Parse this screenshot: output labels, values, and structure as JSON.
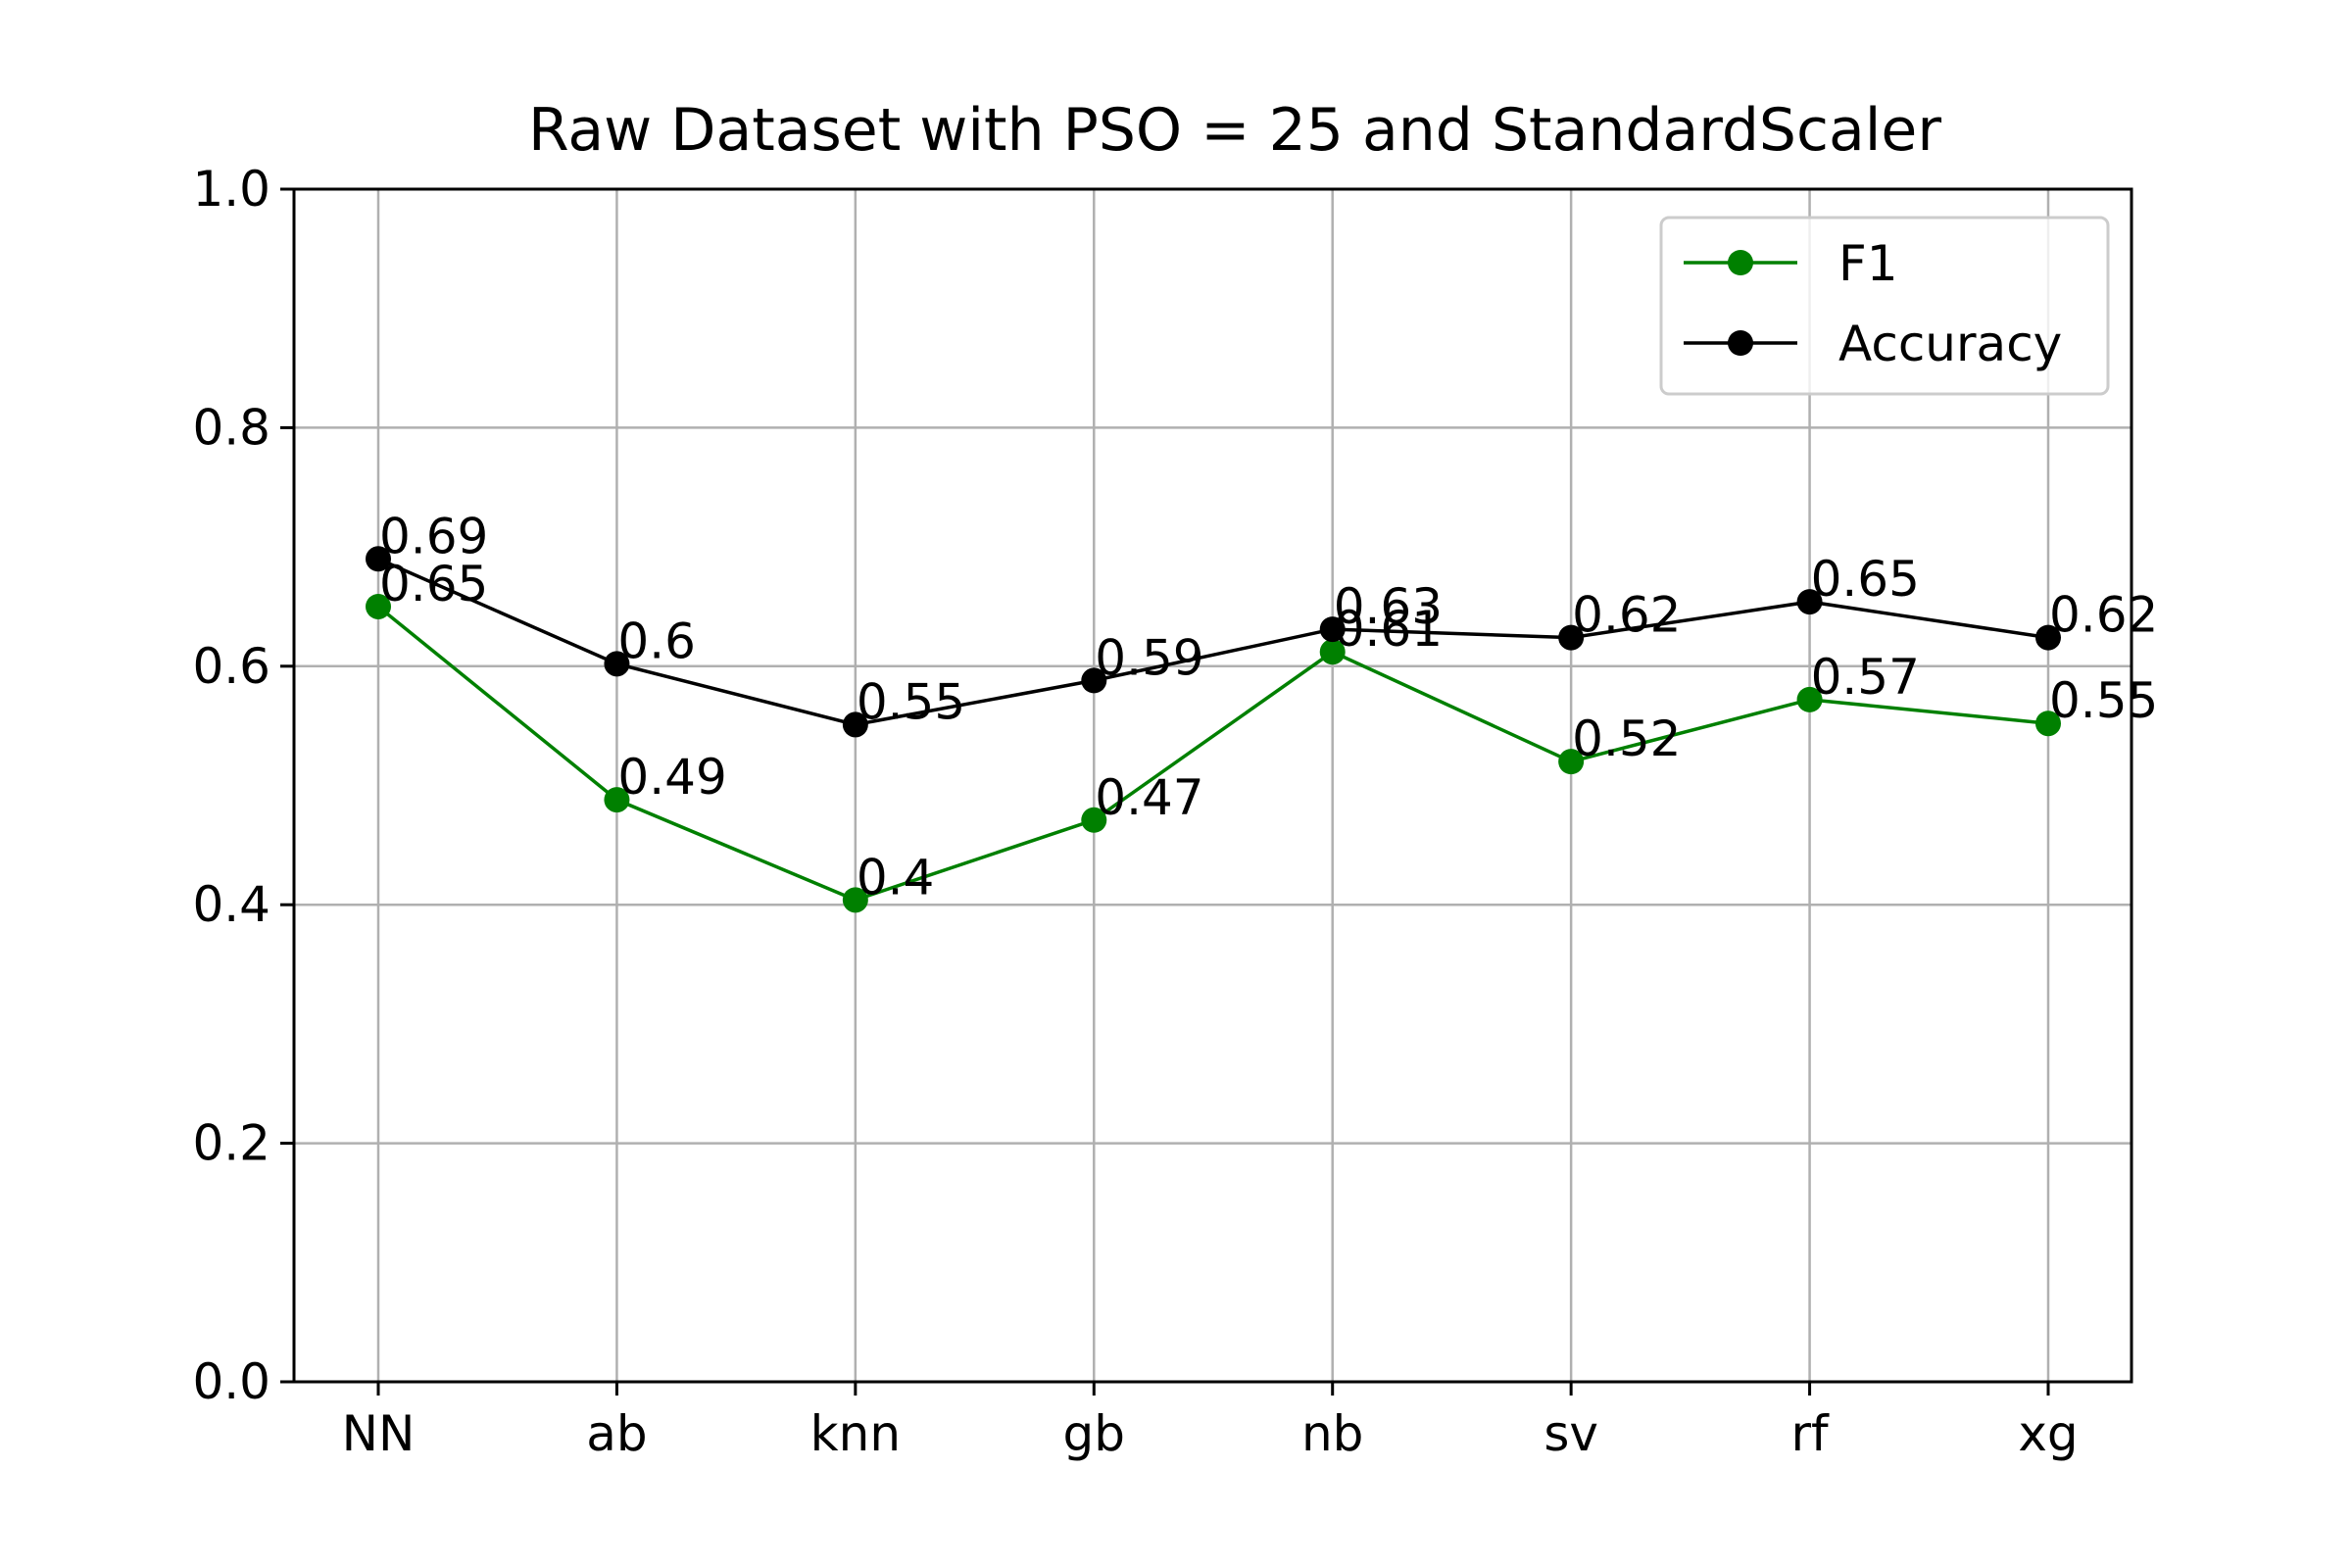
{
  "chart_data": {
    "type": "line",
    "title": "Raw Dataset with PSO = 25 and StandardScaler",
    "xlabel": "",
    "ylabel": "",
    "categories": [
      "NN",
      "ab",
      "knn",
      "gb",
      "nb",
      "sv",
      "rf",
      "xg"
    ],
    "ylim": [
      0.0,
      1.0
    ],
    "yticks": [
      0.0,
      0.2,
      0.4,
      0.6,
      0.8,
      1.0
    ],
    "ytick_labels": [
      "0.0",
      "0.2",
      "0.4",
      "0.6",
      "0.8",
      "1.0"
    ],
    "grid": true,
    "legend_position": "top-right",
    "series": [
      {
        "name": "F1",
        "color": "#008000",
        "values": [
          0.65,
          0.488,
          0.404,
          0.471,
          0.612,
          0.52,
          0.572,
          0.552
        ],
        "labels": [
          "0.65",
          "0.49",
          "0.4",
          "0.47",
          "0.61",
          "0.52",
          "0.57",
          "0.55"
        ]
      },
      {
        "name": "Accuracy",
        "color": "#000000",
        "values": [
          0.69,
          0.602,
          0.551,
          0.588,
          0.631,
          0.624,
          0.654,
          0.624
        ],
        "labels": [
          "0.69",
          "0.6",
          "0.55",
          "0.59",
          "0.63",
          "0.62",
          "0.65",
          "0.62"
        ]
      }
    ]
  }
}
